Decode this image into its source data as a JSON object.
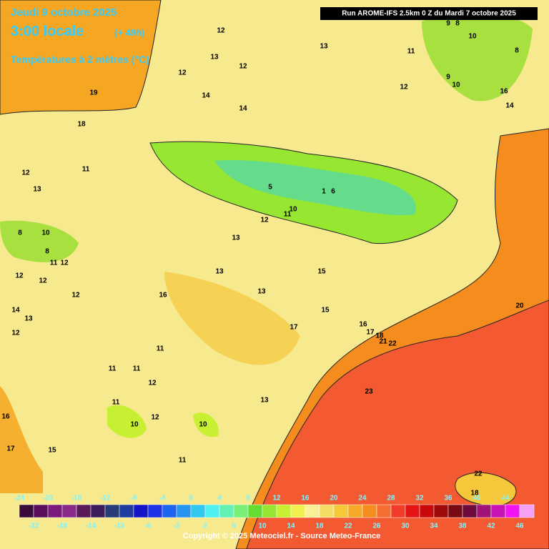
{
  "header": {
    "date": "Jeudi 9 octobre 2025",
    "time": "3:00 locale",
    "lead": "(+ 49h)",
    "field": "Températures à 2 mètres (°C)",
    "run": "Run AROME-IFS 2.5km 0 Z du Mardi 7 octobre 2025"
  },
  "map_labels": [
    "12",
    "13",
    "12",
    "12",
    "19",
    "14",
    "14",
    "13",
    "11",
    "12",
    "9",
    "8",
    "10",
    "8",
    "9",
    "10",
    "16",
    "14",
    "18",
    "11",
    "12",
    "13",
    "5",
    "6",
    "1",
    "10",
    "11",
    "12",
    "13",
    "8",
    "10",
    "8",
    "11",
    "12",
    "12",
    "13",
    "15",
    "12",
    "12",
    "16",
    "13",
    "14",
    "13",
    "15",
    "16",
    "20",
    "12",
    "17",
    "17",
    "18",
    "21",
    "22",
    "11",
    "11",
    "11",
    "12",
    "23",
    "11",
    "13",
    "16",
    "12",
    "10",
    "10",
    "17",
    "15",
    "11",
    "22",
    "18"
  ],
  "legend": {
    "values": [
      -24,
      -22,
      -20,
      -18,
      -16,
      -14,
      -12,
      -10,
      -8,
      -6,
      -4,
      -2,
      0,
      2,
      4,
      6,
      8,
      10,
      12,
      14,
      16,
      18,
      20,
      22,
      24,
      26,
      28,
      30,
      32,
      34,
      36,
      38,
      40,
      42,
      44,
      46
    ],
    "colors": [
      "#3a0a3a",
      "#5a0f5a",
      "#7a1a7a",
      "#8a2a8a",
      "#5a1a5a",
      "#3c1e5a",
      "#283c78",
      "#1e3ca0",
      "#1414c8",
      "#1e32e6",
      "#1e64f0",
      "#2896f0",
      "#32c8f0",
      "#50f0f0",
      "#64f0b4",
      "#78f078",
      "#64dc32",
      "#96e632",
      "#c8f032",
      "#f0f050",
      "#faf096",
      "#f5dc64",
      "#f5c83c",
      "#f5aa28",
      "#f58c1e",
      "#f56e32",
      "#f03c28",
      "#e61414",
      "#c80a0a",
      "#a00a0a",
      "#780a14",
      "#6e0a3c",
      "#a01478",
      "#c814b4",
      "#f014f0",
      "#f5a0f5"
    ]
  },
  "copyright": "Copyright © 2025 Meteociel.fr - Source Meteo-France"
}
